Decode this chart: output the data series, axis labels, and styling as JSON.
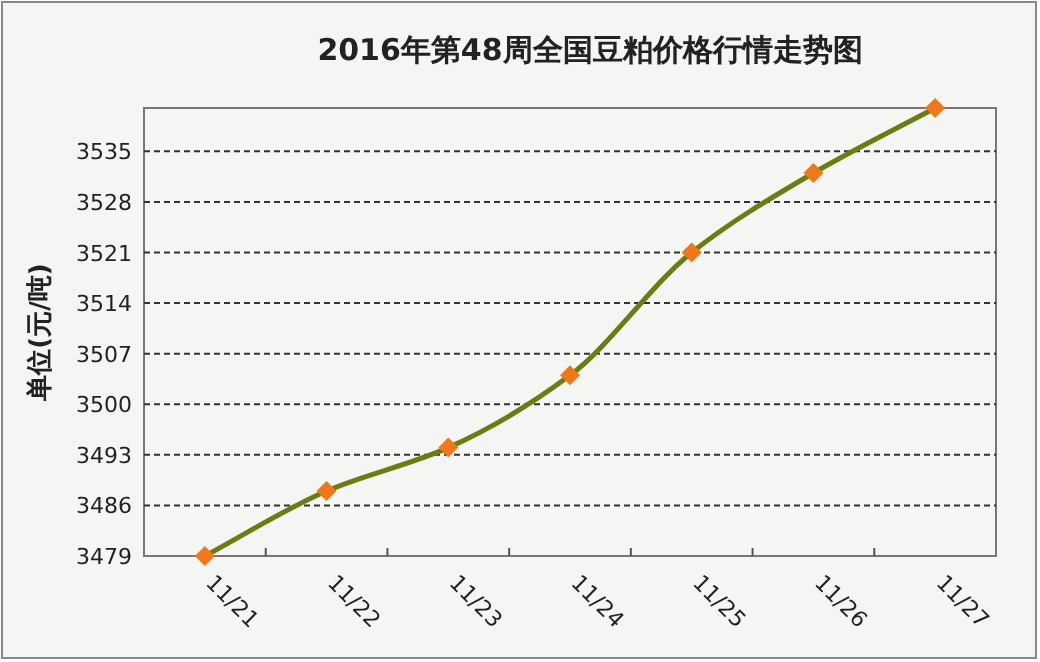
{
  "chart_data": {
    "type": "line",
    "title": "2016年第48周全国豆粕价格行情走势图",
    "ylabel": "单位(元/吨)",
    "categories": [
      "11/21",
      "11/22",
      "11/23",
      "11/24",
      "11/25",
      "11/26",
      "11/27"
    ],
    "series": [
      {
        "color": "#6b7d10",
        "values": [
          3479,
          3488,
          3494,
          3504,
          3521,
          3532,
          3541
        ]
      }
    ],
    "ylim": [
      3479,
      3541
    ],
    "yticks": [
      3479,
      3486,
      3493,
      3500,
      3507,
      3514,
      3521,
      3528,
      3535
    ],
    "grid": "y",
    "marker": "diamond",
    "line_style": "solid"
  }
}
